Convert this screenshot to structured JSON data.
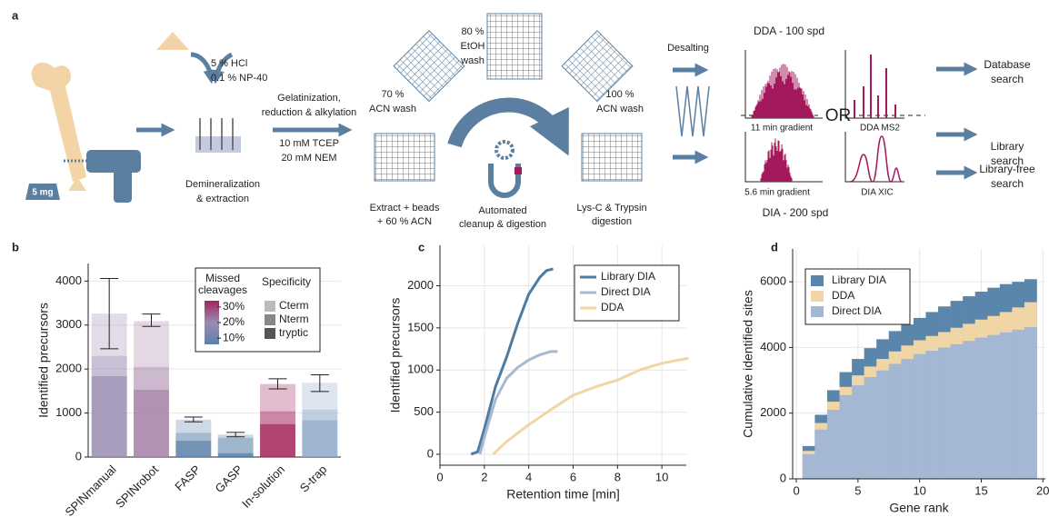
{
  "diagram": {
    "label": "a",
    "hcl": "5 % HCl",
    "np40": "0.1 % NP-40",
    "weight": "5 mg",
    "demineralization": [
      "Demineralization",
      "& extraction"
    ],
    "gelatinization": [
      "Gelatinization,",
      "reduction & alkylation"
    ],
    "reagents": [
      "10 mM TCEP",
      "20 mM NEM"
    ],
    "etoh": [
      "80 %",
      "EtOH",
      "wash"
    ],
    "acn70": [
      "70 %",
      "ACN wash"
    ],
    "acn100": [
      "100 %",
      "ACN wash"
    ],
    "extract": [
      "Extract + beads",
      "+ 60 % ACN"
    ],
    "automated": [
      "Automated",
      "cleanup & digestion"
    ],
    "digestion": [
      "Lys-C & Trypsin",
      "digestion"
    ],
    "desalting": "Desalting",
    "dda_title": "DDA - 100 spd",
    "dda_gradient": "11 min gradient",
    "dda_ms2": "DDA MS2",
    "or": "OR",
    "dia_gradient": "5.6 min gradient",
    "dia_xic": "DIA XIC",
    "dia_title": "DIA - 200 spd",
    "database": [
      "Database",
      "search"
    ],
    "library": [
      "Library",
      "search"
    ],
    "library_free": [
      "Library-free",
      "search"
    ]
  },
  "chart_data": [
    {
      "type": "bar",
      "label": "b",
      "y_label": "Identified precursors",
      "categories": [
        "SPINmanual",
        "SPINrobot",
        "FASP",
        "GASP",
        "In-solution",
        "S-trap"
      ],
      "colors": [
        "#9a8cb2",
        "#a47fa6",
        "#5b80a9",
        "#4f7ba4",
        "#a2255c",
        "#8ea8c9"
      ],
      "series": [
        {
          "name": "tryptic",
          "color": "#555555",
          "opacity": 0.85,
          "values": [
            1840,
            1530,
            370,
            90,
            750,
            840
          ]
        },
        {
          "name": "Nterm",
          "color": "#888888",
          "opacity": 0.55,
          "values": [
            460,
            520,
            180,
            350,
            290,
            240
          ]
        },
        {
          "name": "Cterm",
          "color": "#bbbbbb",
          "opacity": 0.3,
          "values": [
            960,
            1040,
            300,
            70,
            620,
            610
          ]
        }
      ],
      "error_low": [
        2460,
        2970,
        800,
        460,
        1550,
        1490
      ],
      "error_high": [
        4060,
        3250,
        910,
        560,
        1780,
        1870
      ],
      "ylim": [
        0,
        4400
      ],
      "yticks": [
        0,
        1000,
        2000,
        3000,
        4000
      ],
      "grid": true,
      "color_legend_title": [
        "Missed",
        "cleavages"
      ],
      "color_lim": [
        6,
        34
      ],
      "color_ticks": [
        {
          "value": 30,
          "label": "30%"
        },
        {
          "value": 20,
          "label": "20%"
        },
        {
          "value": 10,
          "label": "10%"
        }
      ],
      "color_scale": [
        "#5b80a9",
        "#9a8cb2",
        "#a2255c"
      ],
      "specificity_title": "Specificity"
    },
    {
      "type": "line",
      "label": "c",
      "x_label": "Retention time [min]",
      "y_label": "Identified precursors",
      "series": [
        {
          "name": "Library DIA",
          "color": "#4e7ca1",
          "x": [
            1.4,
            1.7,
            2.0,
            2.5,
            3.0,
            3.5,
            4.0,
            4.5,
            4.8,
            5.1
          ],
          "values": [
            0,
            30,
            300,
            800,
            1150,
            1550,
            1900,
            2100,
            2180,
            2200
          ]
        },
        {
          "name": "Direct DIA",
          "color": "#a7b8d2",
          "x": [
            1.8,
            2.0,
            2.5,
            3.0,
            3.5,
            4.0,
            4.5,
            5.0,
            5.3
          ],
          "values": [
            0,
            200,
            650,
            900,
            1030,
            1120,
            1180,
            1220,
            1220
          ]
        },
        {
          "name": "DDA",
          "color": "#f1d6a5",
          "x": [
            2.4,
            3.0,
            4.0,
            5.0,
            6.0,
            7.0,
            8.0,
            9.0,
            10.0,
            11.2
          ],
          "values": [
            0,
            150,
            350,
            530,
            700,
            800,
            880,
            1000,
            1080,
            1140
          ]
        }
      ],
      "xlim": [
        0,
        11.1
      ],
      "xticks": [
        0,
        2,
        4,
        6,
        8,
        10
      ],
      "ylim": [
        -130,
        2480
      ],
      "yticks": [
        0,
        500,
        1000,
        1500,
        2000
      ],
      "grid": true,
      "legend": "top-right"
    },
    {
      "type": "step",
      "label": "d",
      "x_label": "Gene rank",
      "y_label": "Cumulative identified sites",
      "x": [
        1,
        2,
        3,
        4,
        5,
        6,
        7,
        8,
        9,
        10,
        11,
        12,
        13,
        14,
        15,
        16,
        17,
        18,
        19
      ],
      "series": [
        {
          "name": "Library DIA",
          "color": "#5b86ab",
          "values": [
            1000,
            1950,
            2700,
            3250,
            3650,
            3980,
            4250,
            4500,
            4700,
            4900,
            5080,
            5250,
            5420,
            5560,
            5700,
            5820,
            5930,
            6000,
            6080
          ]
        },
        {
          "name": "DDA",
          "color": "#f0d6a6",
          "values": [
            850,
            1700,
            2350,
            2800,
            3150,
            3420,
            3650,
            3880,
            4060,
            4220,
            4350,
            4470,
            4600,
            4720,
            4850,
            4960,
            5080,
            5220,
            5380
          ]
        },
        {
          "name": "Direct DIA",
          "color": "#a4b7d3",
          "values": [
            750,
            1500,
            2100,
            2550,
            2850,
            3100,
            3300,
            3500,
            3650,
            3800,
            3900,
            4000,
            4100,
            4200,
            4300,
            4380,
            4460,
            4540,
            4620
          ]
        }
      ],
      "xlim": [
        -0.3,
        20.2
      ],
      "xticks": [
        0,
        5,
        10,
        15,
        20
      ],
      "ylim": [
        0,
        7000
      ],
      "yticks": [
        0,
        2000,
        4000,
        6000
      ],
      "grid": true,
      "legend": "top-left"
    }
  ]
}
